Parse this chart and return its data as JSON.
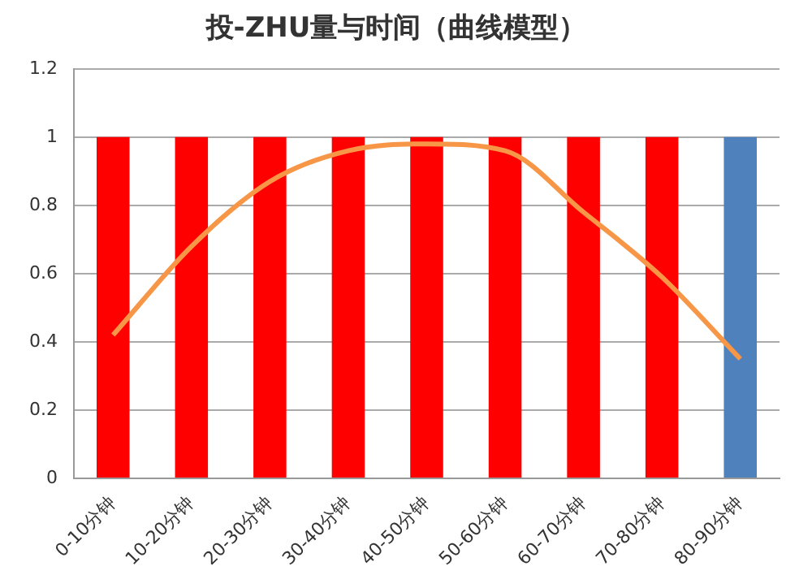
{
  "chart_data": {
    "type": "bar",
    "title": "投-ZHU量与时间（曲线模型）",
    "categories": [
      "0-10分钟",
      "10-20分钟",
      "20-30分钟",
      "30-40分钟",
      "40-50分钟",
      "50-60分钟",
      "60-70分钟",
      "70-80分钟",
      "80-90分钟"
    ],
    "series": [
      {
        "colors": [
          "#ff0000",
          "#ff0000",
          "#ff0000",
          "#ff0000",
          "#ff0000",
          "#ff0000",
          "#ff0000",
          "#ff0000",
          "#4f81bd"
        ],
        "values": [
          1,
          1,
          1,
          1,
          1,
          1,
          1,
          1,
          1
        ]
      },
      {
        "type": "line",
        "color": "#f79646",
        "values": [
          0.42,
          0.68,
          0.87,
          0.96,
          0.98,
          0.96,
          0.78,
          0.59,
          0.35
        ]
      }
    ],
    "ylim": [
      0,
      1.2
    ],
    "yticks": [
      0,
      0.2,
      0.4,
      0.6,
      0.8,
      1,
      1.2
    ],
    "grid": "y",
    "legend": false,
    "marker": "none"
  }
}
